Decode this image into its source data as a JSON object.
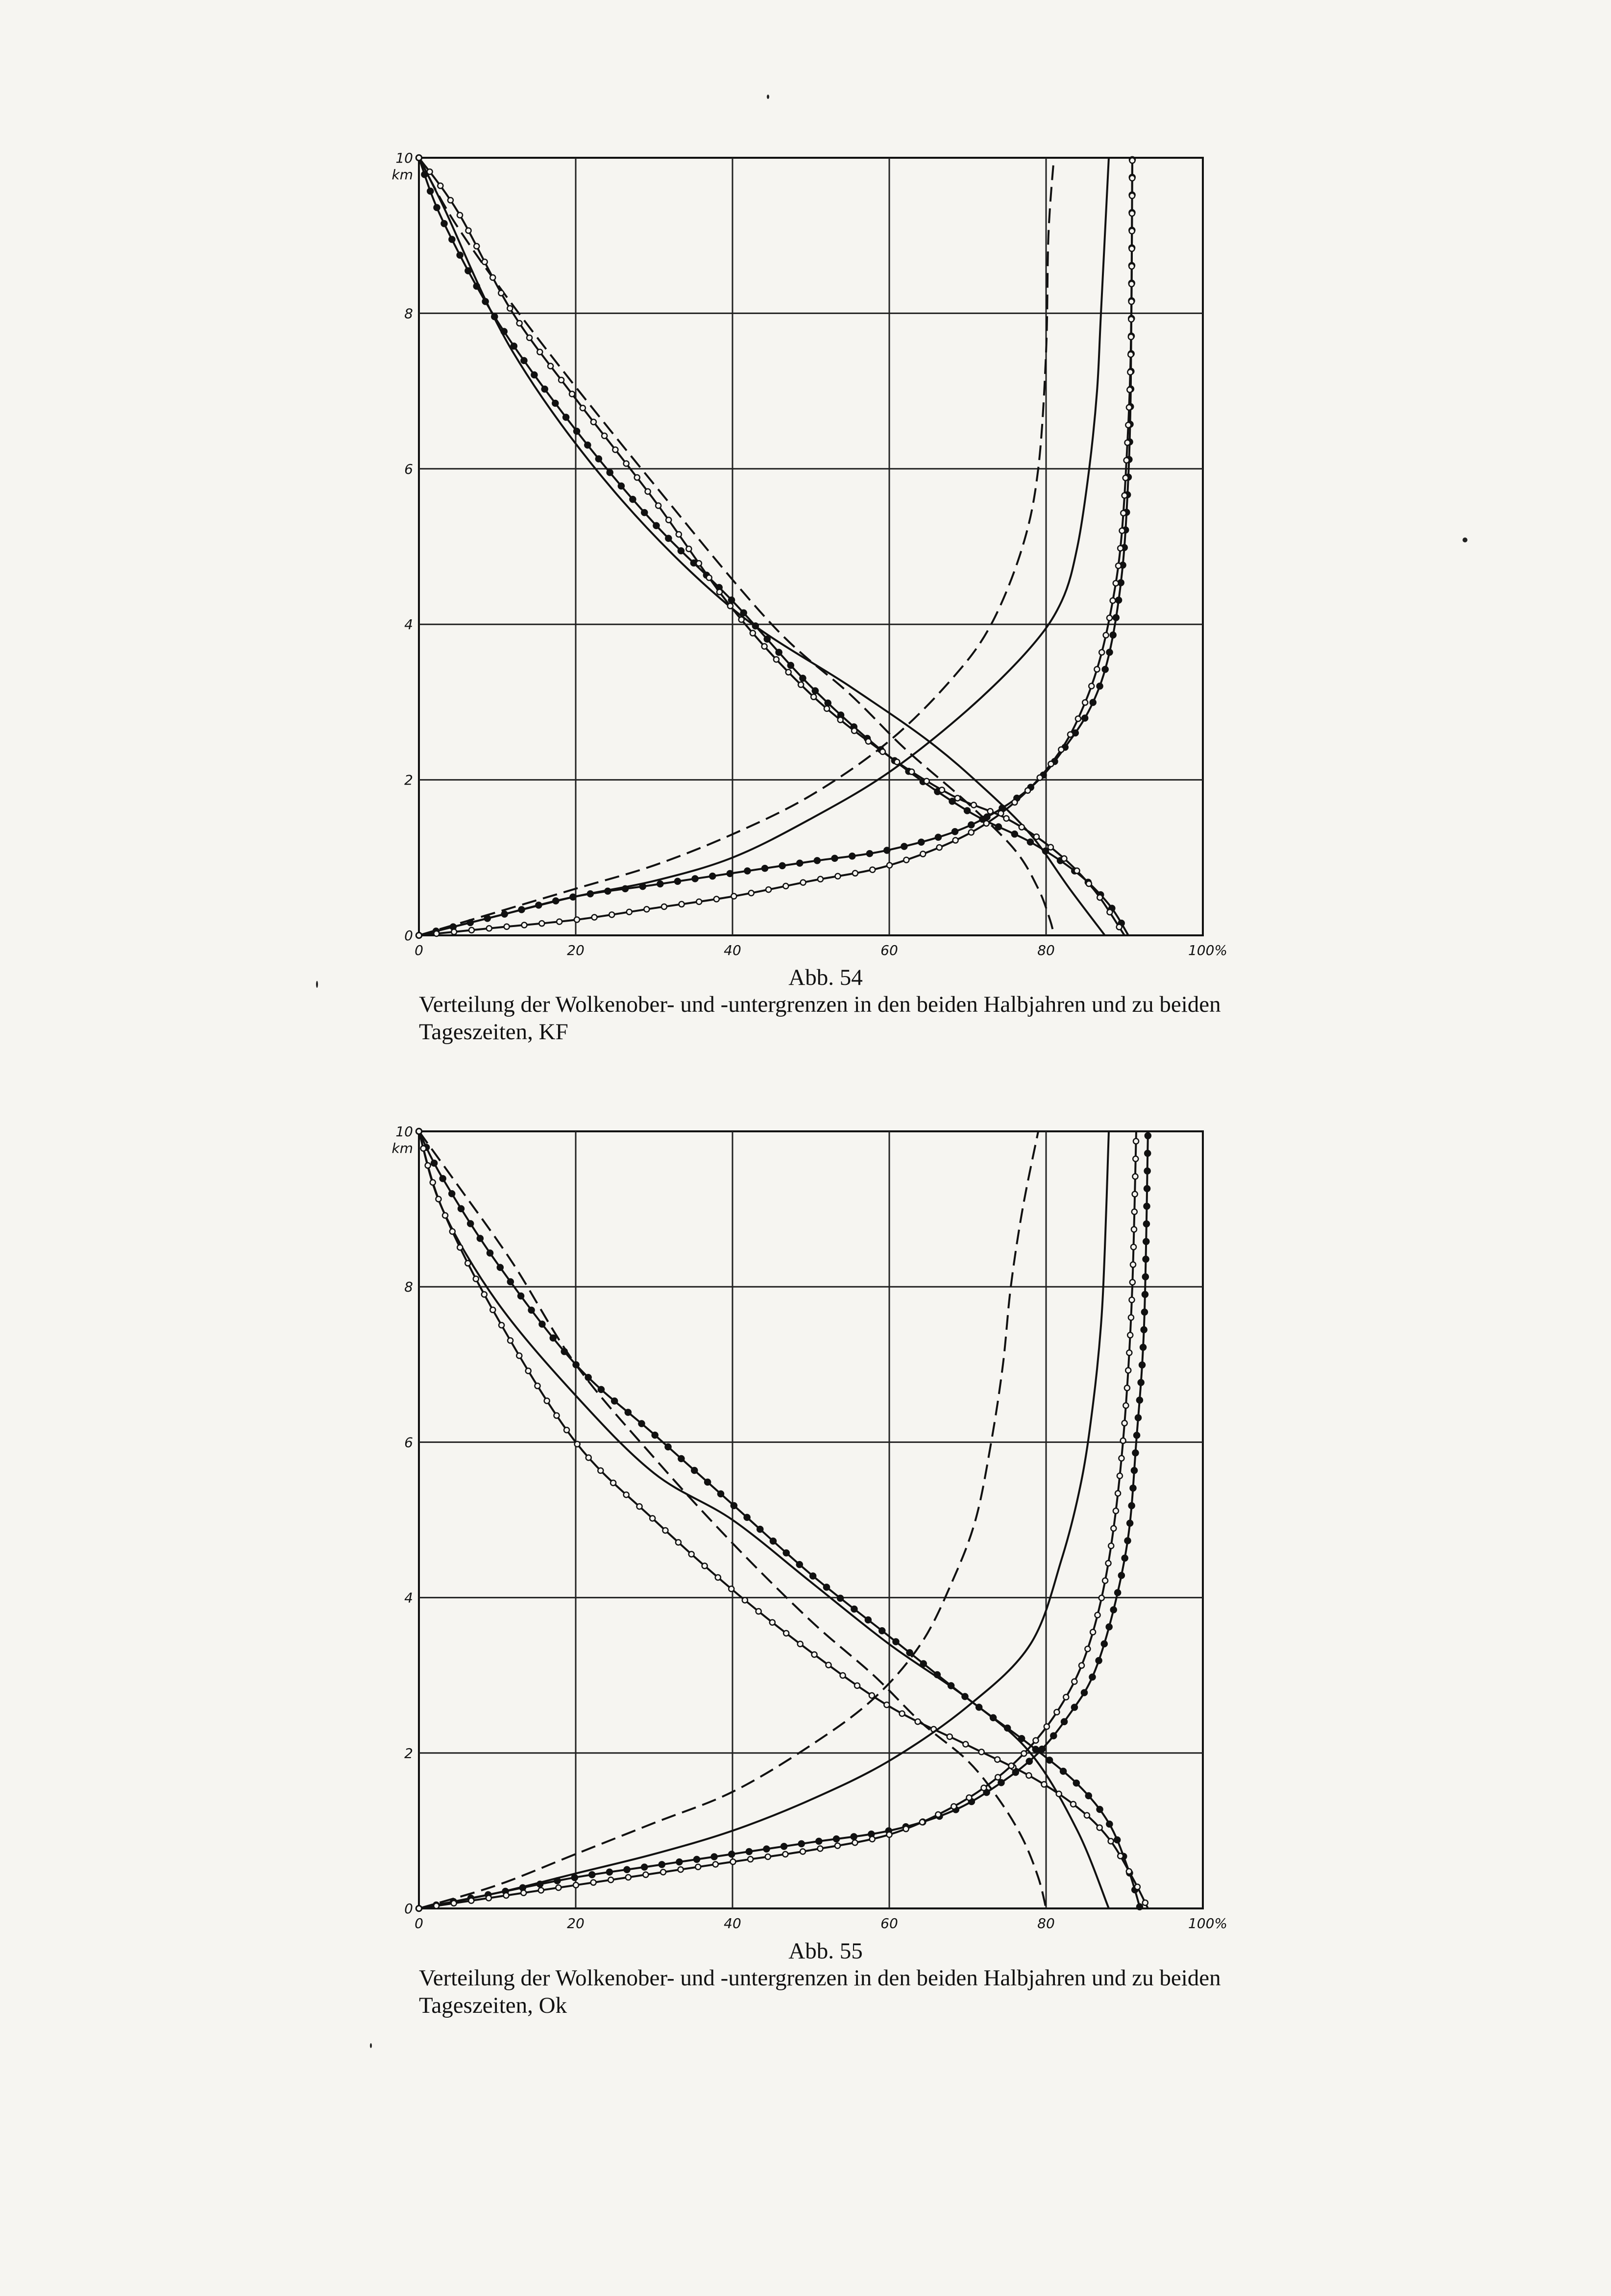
{
  "figures": [
    {
      "id": "abb-54",
      "caption_number": "Abb. 54",
      "caption_text": "Verteilung der Wolkenober- und -untergrenzen in den beiden Halbjahren und zu beiden Tageszeiten, KF",
      "chart_data": {
        "type": "line",
        "title": "",
        "xlabel": "",
        "ylabel": "km",
        "x_unit": "%",
        "xlim": [
          0,
          100
        ],
        "ylim": [
          0,
          10
        ],
        "x_ticks": [
          0,
          20,
          40,
          60,
          80,
          100
        ],
        "x_tick_labels": [
          "0",
          "20",
          "40",
          "60",
          "80",
          "100%"
        ],
        "y_ticks": [
          0,
          2,
          4,
          6,
          8,
          10
        ],
        "y_tick_labels": [
          "0",
          "2",
          "4",
          "6",
          "8",
          "10"
        ],
        "grid": true,
        "series": [
          {
            "style": "dashed",
            "x": [
              0,
              5,
              15,
              30,
              45,
              55,
              62,
              70,
              76,
              79,
              80.5,
              81
            ],
            "y": [
              10,
              9.1,
              7.7,
              5.8,
              4.0,
              3.1,
              2.4,
              1.7,
              1.1,
              0.6,
              0.2,
              0
            ]
          },
          {
            "style": "solid",
            "x": [
              0,
              3,
              12,
              25,
              40,
              55,
              65,
              72,
              78,
              83,
              87.5
            ],
            "y": [
              10,
              9.4,
              7.5,
              5.7,
              4.2,
              3.2,
              2.5,
              1.9,
              1.3,
              0.6,
              0
            ]
          },
          {
            "style": "filled-dot",
            "x": [
              0,
              3,
              10,
              20,
              30,
              40,
              50,
              60,
              70,
              78,
              84,
              88,
              90.5
            ],
            "y": [
              10,
              9.2,
              7.9,
              6.5,
              5.3,
              4.3,
              3.2,
              2.3,
              1.6,
              1.2,
              0.8,
              0.4,
              0
            ]
          },
          {
            "style": "open-dot",
            "x": [
              0,
              5,
              12,
              20,
              30,
              40,
              50,
              60,
              68,
              75,
              81,
              86,
              90
            ],
            "y": [
              10,
              9.3,
              8.0,
              6.9,
              5.6,
              4.2,
              3.1,
              2.3,
              1.8,
              1.5,
              1.1,
              0.6,
              0
            ]
          },
          {
            "style": "dashed",
            "x": [
              0,
              10,
              20,
              30,
              40,
              50,
              60,
              68,
              73,
              77,
              79,
              80,
              80.3,
              81
            ],
            "y": [
              0,
              0.3,
              0.6,
              0.9,
              1.3,
              1.8,
              2.5,
              3.3,
              4.0,
              5.0,
              6.0,
              7.5,
              9.0,
              10
            ]
          },
          {
            "style": "solid",
            "x": [
              0,
              10,
              20,
              30,
              40,
              50,
              60,
              70,
              78,
              82,
              84,
              85.5,
              86.5,
              87,
              88
            ],
            "y": [
              0,
              0.25,
              0.5,
              0.7,
              1.0,
              1.5,
              2.1,
              2.9,
              3.7,
              4.3,
              5.0,
              6.0,
              7.0,
              8.0,
              10
            ]
          },
          {
            "style": "filled-dot",
            "x": [
              0,
              10,
              20,
              30,
              40,
              50,
              60,
              70,
              78,
              83,
              86,
              88,
              89.5,
              90.3,
              90.8,
              91
            ],
            "y": [
              0,
              0.25,
              0.5,
              0.65,
              0.8,
              0.95,
              1.1,
              1.4,
              1.9,
              2.5,
              3.0,
              3.6,
              4.5,
              5.5,
              7.0,
              10
            ]
          },
          {
            "style": "open-dot",
            "x": [
              0,
              10,
              20,
              30,
              40,
              50,
              60,
              70,
              77,
              82,
              85,
              87,
              88.5,
              89.5,
              90.2,
              90.8,
              91
            ],
            "y": [
              0,
              0.1,
              0.2,
              0.35,
              0.5,
              0.7,
              0.9,
              1.3,
              1.8,
              2.4,
              3.0,
              3.6,
              4.3,
              5.0,
              6.0,
              7.5,
              10
            ]
          }
        ]
      }
    },
    {
      "id": "abb-55",
      "caption_number": "Abb. 55",
      "caption_text": "Verteilung der Wolkenober- und -untergrenzen in den beiden Halbjahren und zu beiden Tageszeiten, Ok",
      "chart_data": {
        "type": "line",
        "title": "",
        "xlabel": "",
        "ylabel": "km",
        "x_unit": "%",
        "xlim": [
          0,
          100
        ],
        "ylim": [
          0,
          10
        ],
        "x_ticks": [
          0,
          20,
          40,
          60,
          80,
          100
        ],
        "x_tick_labels": [
          "0",
          "20",
          "40",
          "60",
          "80",
          "100%"
        ],
        "y_ticks": [
          0,
          2,
          4,
          6,
          8,
          10
        ],
        "y_tick_labels": [
          "0",
          "2",
          "4",
          "6",
          "8",
          "10"
        ],
        "grid": true,
        "series": [
          {
            "style": "dashed",
            "x": [
              0,
              5,
              12,
              20,
              30,
              40,
              50,
              58,
              64,
              70,
              74,
              77,
              79,
              80
            ],
            "y": [
              10,
              9.3,
              8.3,
              7.0,
              5.8,
              4.7,
              3.7,
              3.0,
              2.4,
              1.9,
              1.4,
              0.9,
              0.4,
              0
            ]
          },
          {
            "style": "solid",
            "x": [
              0,
              3,
              10,
              20,
              30,
              40,
              50,
              60,
              70,
              78,
              84,
              88
            ],
            "y": [
              10,
              9.0,
              7.8,
              6.6,
              5.6,
              5.0,
              4.2,
              3.4,
              2.7,
              2.0,
              1.0,
              0
            ]
          },
          {
            "style": "filled-dot",
            "x": [
              0,
              3,
              10,
              20,
              30,
              40,
              50,
              60,
              70,
              78,
              84,
              88,
              90.5,
              92
            ],
            "y": [
              10,
              9.4,
              8.3,
              7.0,
              6.1,
              5.2,
              4.3,
              3.5,
              2.7,
              2.1,
              1.6,
              1.1,
              0.5,
              0
            ]
          },
          {
            "style": "open-dot",
            "x": [
              0,
              3,
              10,
              20,
              30,
              40,
              50,
              60,
              70,
              78,
              84,
              88,
              91,
              93
            ],
            "y": [
              10,
              9.0,
              7.6,
              6.0,
              5.0,
              4.1,
              3.3,
              2.6,
              2.1,
              1.7,
              1.3,
              0.9,
              0.4,
              0
            ]
          },
          {
            "style": "dashed",
            "x": [
              0,
              10,
              20,
              30,
              40,
              50,
              58,
              64,
              68,
              71,
              73,
              74.5,
              75.5,
              77,
              79
            ],
            "y": [
              0,
              0.3,
              0.7,
              1.1,
              1.5,
              2.1,
              2.7,
              3.4,
              4.2,
              5.0,
              6.0,
              7.0,
              8.0,
              9.0,
              10
            ]
          },
          {
            "style": "solid",
            "x": [
              0,
              10,
              20,
              30,
              40,
              50,
              60,
              70,
              78,
              82,
              84.5,
              86,
              87,
              87.5,
              88
            ],
            "y": [
              0,
              0.2,
              0.45,
              0.7,
              1.0,
              1.4,
              1.9,
              2.6,
              3.4,
              4.5,
              5.5,
              6.5,
              7.5,
              8.5,
              10
            ]
          },
          {
            "style": "filled-dot",
            "x": [
              0,
              10,
              20,
              30,
              40,
              50,
              60,
              68,
              74,
              79,
              83,
              86,
              88.5,
              90.5,
              91.5,
              92.5,
              93
            ],
            "y": [
              0,
              0.2,
              0.4,
              0.55,
              0.7,
              0.85,
              1.0,
              1.25,
              1.6,
              2.0,
              2.5,
              3.0,
              3.8,
              4.8,
              6.0,
              7.5,
              10
            ]
          },
          {
            "style": "open-dot",
            "x": [
              0,
              10,
              20,
              30,
              40,
              50,
              60,
              68,
              74,
              79,
              83,
              85.5,
              87.5,
              89,
              90.2,
              91,
              91.5
            ],
            "y": [
              0,
              0.15,
              0.3,
              0.45,
              0.6,
              0.75,
              0.95,
              1.3,
              1.7,
              2.2,
              2.8,
              3.4,
              4.2,
              5.2,
              6.5,
              8.0,
              10
            ]
          }
        ]
      }
    }
  ]
}
